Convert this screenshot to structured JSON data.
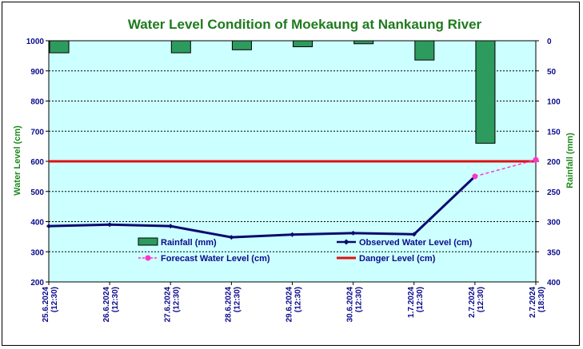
{
  "chart_data": {
    "type": "bar+line",
    "title": "Water Level Condition of Moekaung at Nankaung River",
    "ylabel": "Water Level (cm)",
    "y2label": "Rainfall (mm)",
    "ylim": [
      200,
      1000
    ],
    "y2lim": [
      0,
      400
    ],
    "y2_inverted": true,
    "yticks": [
      "200",
      "300",
      "400",
      "500",
      "600",
      "700",
      "800",
      "900",
      "1000"
    ],
    "y2ticks": [
      "0",
      "50",
      "100",
      "150",
      "200",
      "250",
      "300",
      "350",
      "400"
    ],
    "categories": [
      {
        "date": "25.6.2024",
        "time": "(12:30)"
      },
      {
        "date": "26.6.2024",
        "time": "(12:30)"
      },
      {
        "date": "27.6.2024",
        "time": "(12:30)"
      },
      {
        "date": "28.6.2024",
        "time": "(12:30)"
      },
      {
        "date": "29.6.2024",
        "time": "(12:30)"
      },
      {
        "date": "30.6.2024",
        "time": "(12:30)"
      },
      {
        "date": "1.7.2024",
        "time": "(12:30)"
      },
      {
        "date": "2.7.2024",
        "time": "(12:30)"
      },
      {
        "date": "2.7.2024",
        "time": "(18:30)"
      }
    ],
    "series": [
      {
        "name": "Rainfall (mm)",
        "type": "bar",
        "axis": "right",
        "color": "#2e9b5e",
        "values": [
          20,
          null,
          20,
          15,
          10,
          5,
          32,
          170,
          null
        ]
      },
      {
        "name": "Observed Water Level (cm)",
        "type": "line",
        "axis": "left",
        "color": "#0a0a6e",
        "values": [
          385,
          390,
          385,
          348,
          357,
          362,
          358,
          550,
          null
        ]
      },
      {
        "name": "Forecast Water Level (cm)",
        "type": "line",
        "dashed": true,
        "axis": "left",
        "color": "#ff33cc",
        "values": [
          null,
          null,
          null,
          null,
          null,
          null,
          null,
          550,
          605
        ]
      },
      {
        "name": "Danger Level (cm)",
        "type": "hline",
        "axis": "left",
        "color": "#e01010",
        "value": 600
      }
    ],
    "grid": true,
    "legend_placement": "inside-bottom",
    "background_color": "#ccffff"
  }
}
